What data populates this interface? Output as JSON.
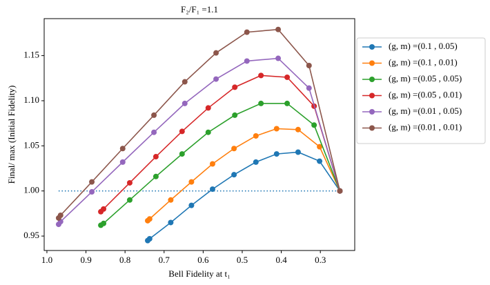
{
  "chart_data": {
    "type": "line",
    "title": "F₂/F₁ =1.1",
    "xlabel": "Bell Fidelity at t₁",
    "ylabel": "Final/ max (Initial Fidelity)",
    "xlim": [
      1.007,
      0.212
    ],
    "ylim": [
      0.934,
      1.191
    ],
    "xticks": [
      {
        "value": 1,
        "label": "1.0"
      },
      0.9,
      0.8,
      0.7,
      0.6,
      0.5,
      0.4,
      0.3
    ],
    "yticks": [
      0.95,
      {
        "value": 1,
        "label": "1.00"
      },
      1.05,
      {
        "value": 1.1,
        "label": "1.10"
      },
      1.15
    ],
    "reference_line": {
      "y": 1,
      "x": [
        0.97,
        0.25
      ],
      "color": "#1f77b4"
    },
    "legend": "upper right outside",
    "series": [
      {
        "name": "(g, m) =(0.1 , 0.05)",
        "color": "#1f77b4",
        "x": [
          0.742,
          0.737,
          0.683,
          0.63,
          0.576,
          0.521,
          0.465,
          0.412,
          0.357,
          0.302,
          0.25
        ],
        "values": [
          0.945,
          0.947,
          0.965,
          0.984,
          1.002,
          1.018,
          1.032,
          1.041,
          1.043,
          1.033,
          1.0
        ]
      },
      {
        "name": "(g, m) =(0.1 , 0.01)",
        "color": "#ff7f0e",
        "x": [
          0.742,
          0.737,
          0.683,
          0.63,
          0.576,
          0.521,
          0.465,
          0.412,
          0.357,
          0.302,
          0.25
        ],
        "values": [
          0.967,
          0.969,
          0.99,
          1.01,
          1.03,
          1.047,
          1.061,
          1.069,
          1.068,
          1.049,
          1.0
        ]
      },
      {
        "name": "(g, m) =(0.05 , 0.05)",
        "color": "#2ca02c",
        "x": [
          0.862,
          0.855,
          0.788,
          0.721,
          0.654,
          0.587,
          0.519,
          0.452,
          0.385,
          0.316,
          0.25
        ],
        "values": [
          0.962,
          0.964,
          0.99,
          1.016,
          1.041,
          1.065,
          1.084,
          1.097,
          1.097,
          1.073,
          1.0
        ]
      },
      {
        "name": "(g, m) =(0.05 , 0.01)",
        "color": "#d62728",
        "x": [
          0.862,
          0.855,
          0.788,
          0.721,
          0.654,
          0.587,
          0.519,
          0.452,
          0.385,
          0.316,
          0.25
        ],
        "values": [
          0.977,
          0.98,
          1.009,
          1.038,
          1.066,
          1.092,
          1.115,
          1.128,
          1.126,
          1.094,
          1.0
        ]
      },
      {
        "name": "(g, m) =(0.01 , 0.05)",
        "color": "#9467bd",
        "x": [
          0.97,
          0.965,
          0.885,
          0.806,
          0.726,
          0.647,
          0.567,
          0.488,
          0.408,
          0.329,
          0.25
        ],
        "values": [
          0.963,
          0.966,
          0.999,
          1.032,
          1.065,
          1.097,
          1.124,
          1.144,
          1.147,
          1.114,
          1.0
        ]
      },
      {
        "name": "(g, m) =(0.01 , 0.01)",
        "color": "#8c564b",
        "x": [
          0.97,
          0.965,
          0.885,
          0.806,
          0.726,
          0.647,
          0.567,
          0.488,
          0.408,
          0.329,
          0.25
        ],
        "values": [
          0.97,
          0.973,
          1.01,
          1.047,
          1.084,
          1.121,
          1.153,
          1.176,
          1.179,
          1.139,
          1.0
        ]
      }
    ]
  }
}
